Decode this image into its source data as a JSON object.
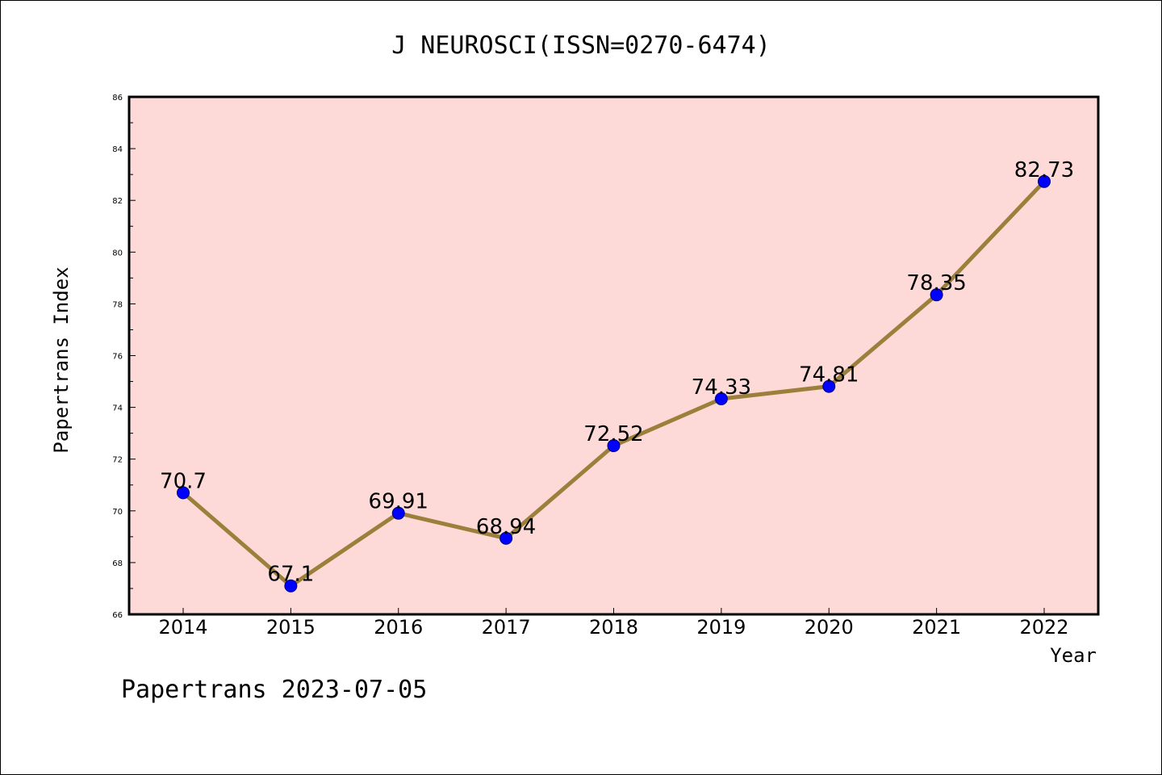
{
  "chart_data": {
    "type": "line",
    "title": "J NEUROSCI(ISSN=0270-6474)",
    "xlabel": "Year",
    "ylabel": "Papertrans Index",
    "categories": [
      "2014",
      "2015",
      "2016",
      "2017",
      "2018",
      "2019",
      "2020",
      "2021",
      "2022"
    ],
    "values": [
      70.7,
      67.1,
      69.91,
      68.94,
      72.52,
      74.33,
      74.81,
      78.35,
      82.73
    ],
    "data_labels": [
      "70.7",
      "67.1",
      "69.91",
      "68.94",
      "72.52",
      "74.33",
      "74.81",
      "78.35",
      "82.73"
    ],
    "ylim": [
      66,
      86
    ],
    "yticks": [
      "66",
      "68",
      "70",
      "72",
      "74",
      "76",
      "78",
      "80",
      "82",
      "84",
      "86"
    ],
    "grid": false,
    "colors": {
      "plot_background": "#fddad7",
      "line": "#9b7f3a",
      "marker": "#0000ff"
    }
  },
  "footer": {
    "text": "Papertrans 2023-07-05"
  }
}
